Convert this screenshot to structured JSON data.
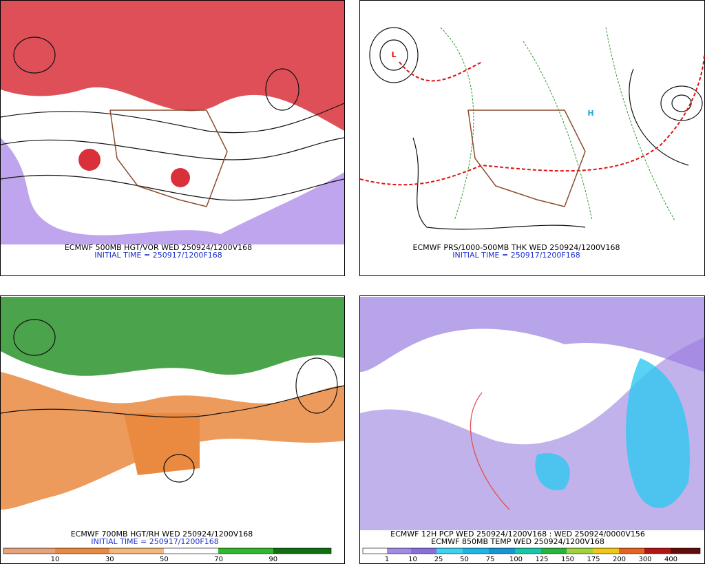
{
  "panels": [
    {
      "caption": "ECMWF 500MB HGT/VOR WED 250924/1200V168",
      "initial": "INITIAL TIME = 250917/1200F168"
    },
    {
      "caption": "ECMWF PRS/1000-500MB THK WED 250924/1200V168",
      "initial": "INITIAL TIME = 250917/1200F168"
    },
    {
      "caption": "ECMWF 700MB HGT/RH WED 250924/1200V168",
      "initial": "INITIAL TIME = 250917/1200F168",
      "colorbar": [
        10,
        30,
        50,
        70,
        90
      ]
    },
    {
      "caption": "ECMWF 12H PCP WED 250924/1200V168 : WED 250924/0000V156",
      "caption2": "ECMWF 850MB TEMP WED 250924/1200V168",
      "colorbar": [
        1,
        10,
        25,
        50,
        75,
        100,
        125,
        150,
        175,
        200,
        300,
        400
      ]
    }
  ]
}
